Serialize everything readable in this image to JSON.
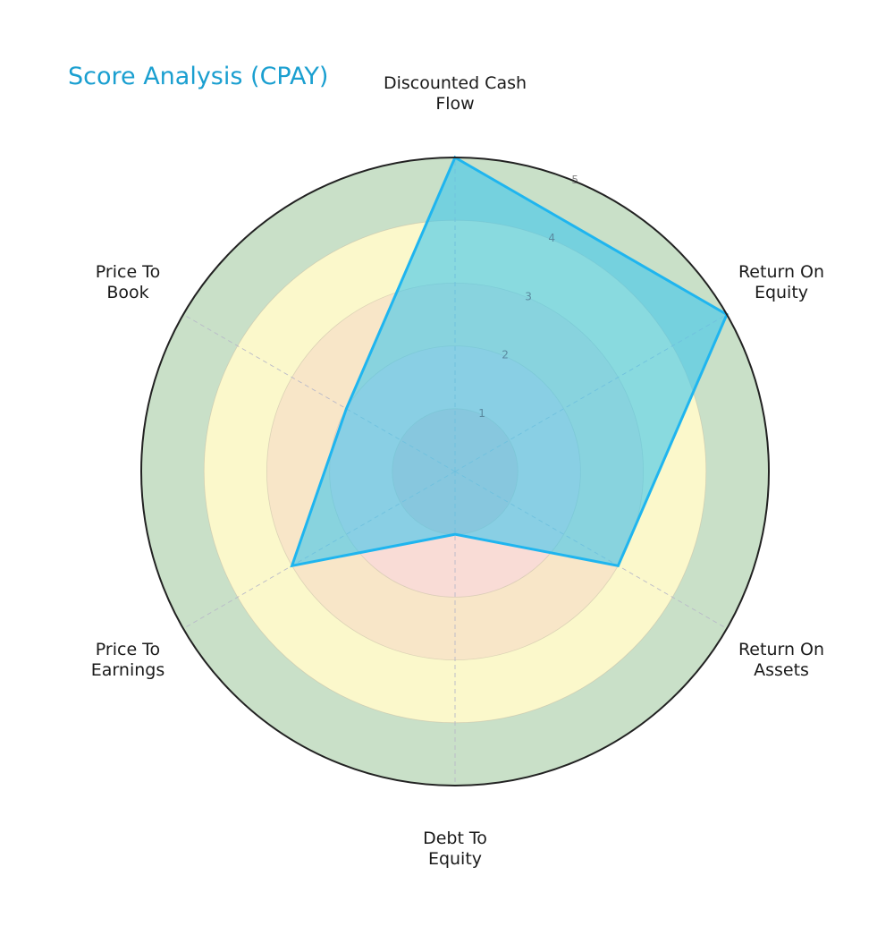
{
  "title": "Score Analysis (CPAY)",
  "colors": {
    "title": "#1a9fd0",
    "series_line": "#1fb5ef",
    "series_fill": "#3ec6ec",
    "rings": [
      "#f6c9c9",
      "#f9dcd6",
      "#f8e6c8",
      "#fbf8cb",
      "#c9e0c8"
    ],
    "outer_border": "#222222"
  },
  "axes": [
    {
      "label_line1": "Discounted Cash",
      "label_line2": "Flow"
    },
    {
      "label_line1": "Return On",
      "label_line2": "Equity"
    },
    {
      "label_line1": "Return On",
      "label_line2": "Assets"
    },
    {
      "label_line1": "Debt To",
      "label_line2": "Equity"
    },
    {
      "label_line1": "Price To",
      "label_line2": "Earnings"
    },
    {
      "label_line1": "Price To",
      "label_line2": "Book"
    }
  ],
  "radial_ticks": [
    "1",
    "2",
    "3",
    "4",
    "5"
  ],
  "chart_data": {
    "type": "radar",
    "title": "Score Analysis (CPAY)",
    "categories": [
      "Discounted Cash Flow",
      "Return On Equity",
      "Return On Assets",
      "Debt To Equity",
      "Price To Earnings",
      "Price To Book"
    ],
    "series": [
      {
        "name": "CPAY",
        "values": [
          5,
          5,
          3,
          1,
          3,
          2
        ]
      }
    ],
    "rlim": [
      0,
      5
    ],
    "rticks": [
      1,
      2,
      3,
      4,
      5
    ],
    "background_bands": [
      {
        "range": [
          0,
          1
        ],
        "color": "#f6c9c9"
      },
      {
        "range": [
          1,
          2
        ],
        "color": "#f9dcd6"
      },
      {
        "range": [
          2,
          3
        ],
        "color": "#f8e6c8"
      },
      {
        "range": [
          3,
          4
        ],
        "color": "#fbf8cb"
      },
      {
        "range": [
          4,
          5
        ],
        "color": "#c9e0c8"
      }
    ],
    "grid": true,
    "legend": "none"
  }
}
